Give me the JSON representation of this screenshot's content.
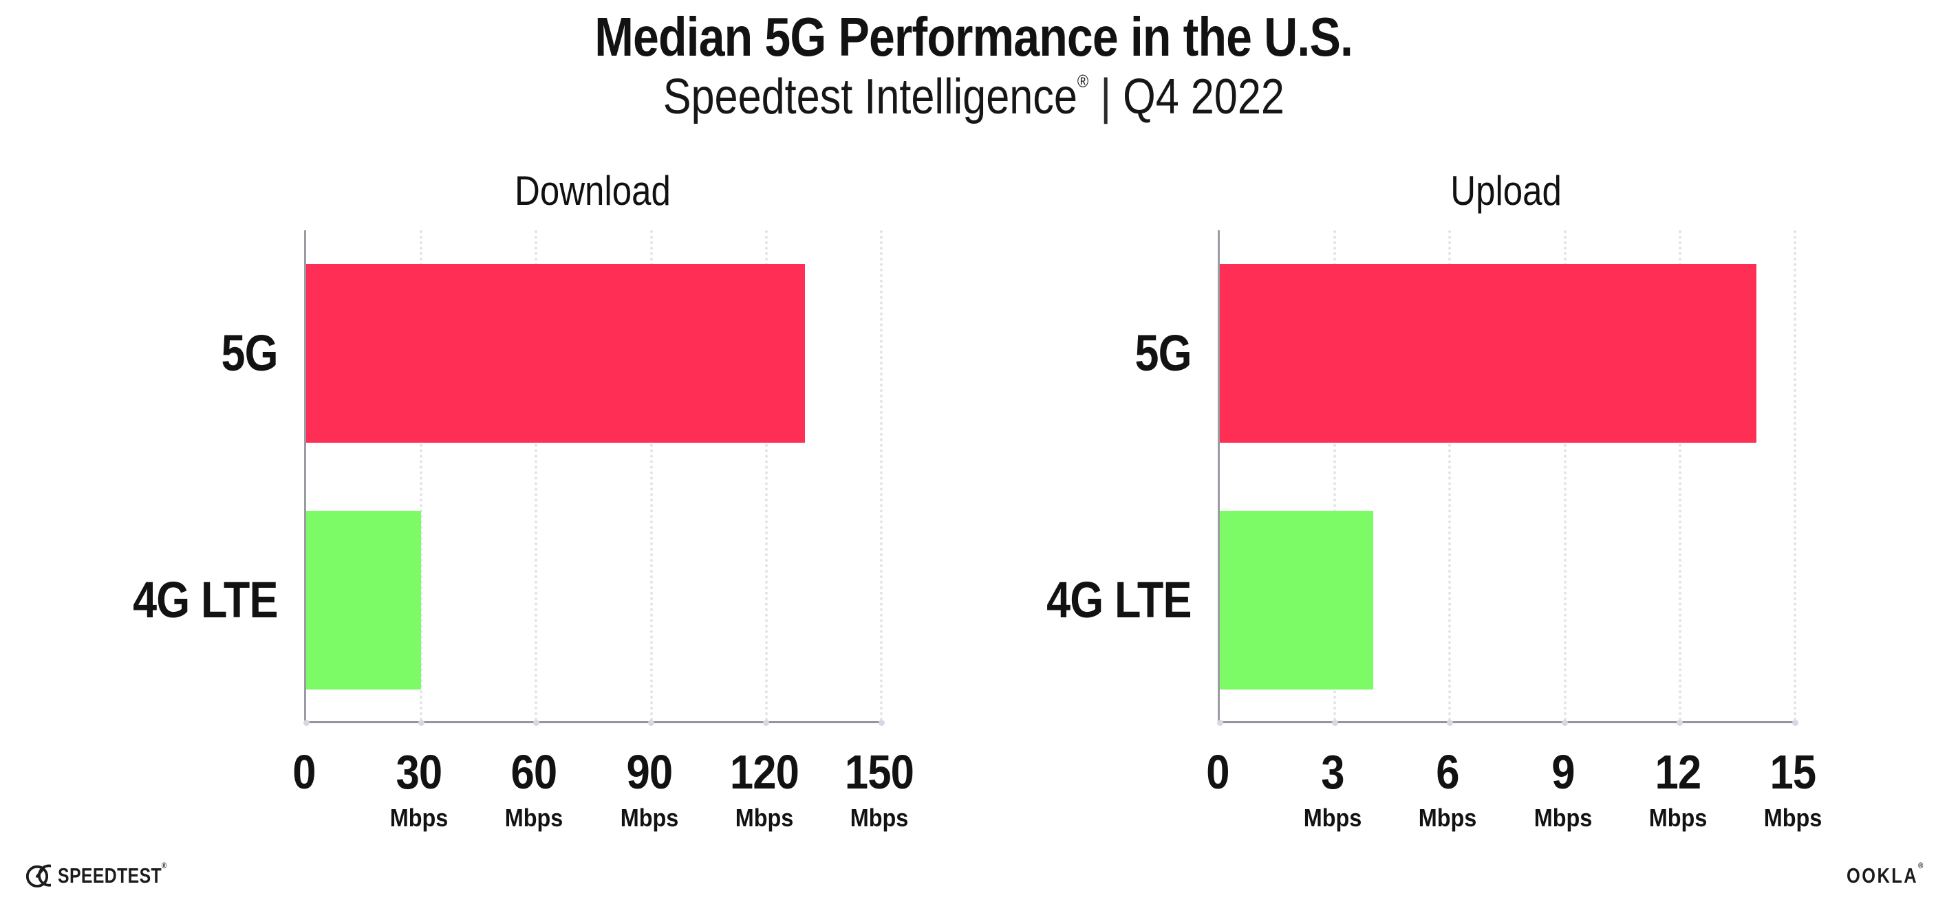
{
  "header": {
    "title": "Median 5G Performance in the U.S.",
    "subtitle": {
      "brand": "Speedtest Intelligence",
      "mark": "®",
      "separator": "|",
      "period": "Q4 2022"
    }
  },
  "chart_data": [
    {
      "type": "bar",
      "orientation": "horizontal",
      "title": "Download",
      "categories": [
        "5G",
        "4G LTE"
      ],
      "values": [
        130,
        30
      ],
      "unit": "Mbps",
      "xlim": [
        0,
        150
      ],
      "xticks": [
        {
          "value": 0,
          "label": "0",
          "unit": ""
        },
        {
          "value": 30,
          "label": "30",
          "unit": "Mbps"
        },
        {
          "value": 60,
          "label": "60",
          "unit": "Mbps"
        },
        {
          "value": 90,
          "label": "90",
          "unit": "Mbps"
        },
        {
          "value": 120,
          "label": "120",
          "unit": "Mbps"
        },
        {
          "value": 150,
          "label": "150",
          "unit": "Mbps"
        }
      ],
      "bar_colors": [
        "#FF2E55",
        "#7DFB66"
      ],
      "grid": "vertical-dotted",
      "legend": "none"
    },
    {
      "type": "bar",
      "orientation": "horizontal",
      "title": "Upload",
      "categories": [
        "5G",
        "4G LTE"
      ],
      "values": [
        14,
        4
      ],
      "unit": "Mbps",
      "xlim": [
        0,
        15
      ],
      "xticks": [
        {
          "value": 0,
          "label": "0",
          "unit": ""
        },
        {
          "value": 3,
          "label": "3",
          "unit": "Mbps"
        },
        {
          "value": 6,
          "label": "6",
          "unit": "Mbps"
        },
        {
          "value": 9,
          "label": "9",
          "unit": "Mbps"
        },
        {
          "value": 12,
          "label": "12",
          "unit": "Mbps"
        },
        {
          "value": 15,
          "label": "15",
          "unit": "Mbps"
        }
      ],
      "bar_colors": [
        "#FF2E55",
        "#7DFB66"
      ],
      "grid": "vertical-dotted",
      "legend": "none"
    }
  ],
  "footer": {
    "speedtest_logo": {
      "text": "SPEEDTEST",
      "mark": "®"
    },
    "ookla_logo": {
      "text": "OOKLA",
      "mark": "®"
    }
  },
  "colors": {
    "bar_5g": "#FF2E55",
    "bar_4g_lte": "#7DFB66",
    "axis": "#95959e",
    "gridline": "#e2e2ec",
    "tick_dot": "#d8d8e2",
    "text": "#121212"
  }
}
